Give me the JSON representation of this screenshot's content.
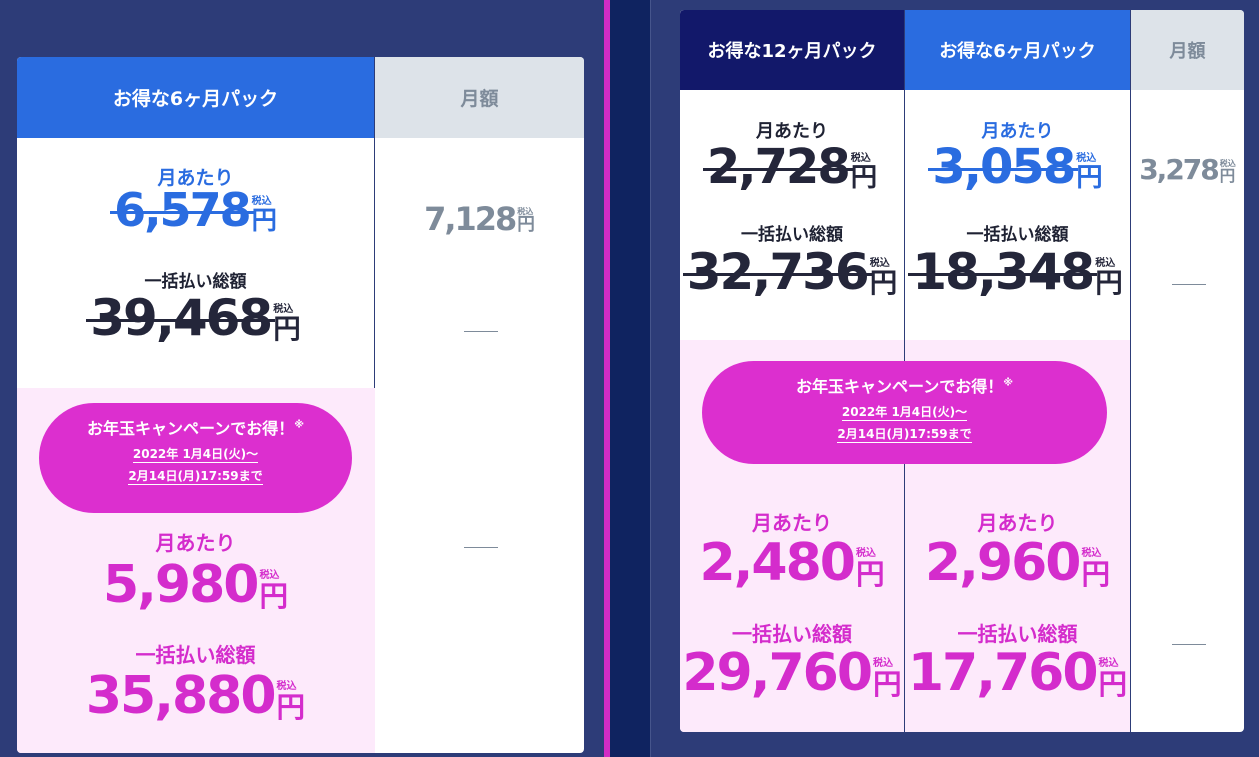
{
  "left_card": {
    "col1_header": "お得な6ヶ月パック",
    "col2_header": "月額",
    "monthly_label": "月あたり",
    "monthly_price": "6,578",
    "lump_label": "一括払い総額",
    "lump_price": "39,468",
    "campaign_title": "お年玉キャンペーンでお得！",
    "campaign_mark": "※",
    "campaign_date1": "2022年 1月4日(火)～",
    "campaign_date2": "2月14日(月)17:59まで",
    "promo_monthly_label": "月あたり",
    "promo_monthly_price": "5,980",
    "promo_lump_label": "一括払い総額",
    "promo_lump_price": "35,880",
    "monthly_only_price": "7,128"
  },
  "right_card": {
    "col1_header": "お得な12ヶ月パック",
    "col2_header": "お得な6ヶ月パック",
    "col3_header": "月額",
    "c1_monthly_label": "月あたり",
    "c1_monthly_price": "2,728",
    "c1_lump_label": "一括払い総額",
    "c1_lump_price": "32,736",
    "c2_monthly_label": "月あたり",
    "c2_monthly_price": "3,058",
    "c2_lump_label": "一括払い総額",
    "c2_lump_price": "18,348",
    "c3_price": "3,278",
    "campaign_title": "お年玉キャンペーンでお得！",
    "campaign_mark": "※",
    "campaign_date1": "2022年 1月4日(火)～",
    "campaign_date2": "2月14日(月)17:59まで",
    "c1_promo_monthly_label": "月あたり",
    "c1_promo_monthly_price": "2,480",
    "c1_promo_lump_label": "一括払い総額",
    "c1_promo_lump_price": "29,760",
    "c2_promo_monthly_label": "月あたり",
    "c2_promo_monthly_price": "2,960",
    "c2_promo_lump_label": "一括払い総額",
    "c2_promo_lump_price": "17,760"
  },
  "tax_label": "税込",
  "yen_label": "円"
}
